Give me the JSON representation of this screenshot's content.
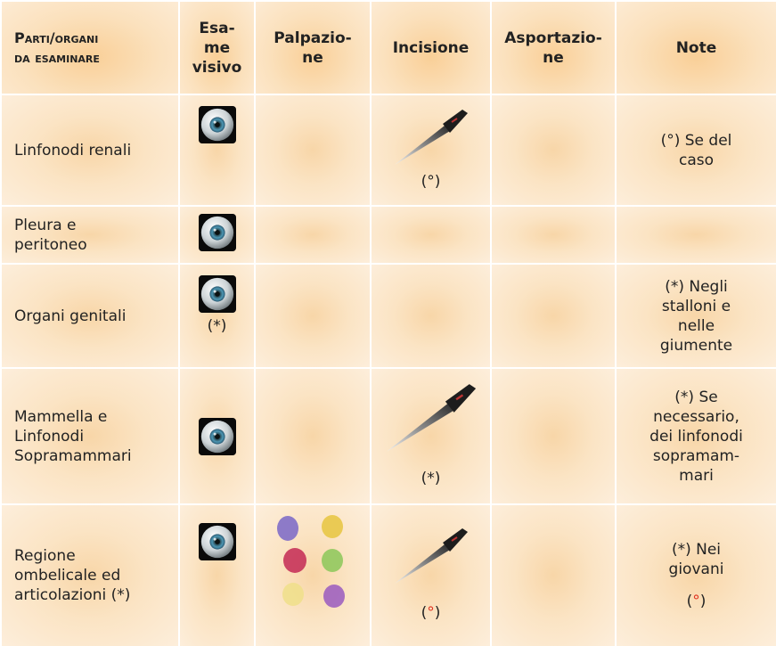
{
  "table": {
    "headers": [
      "Parti/organi\nda esaminare",
      "Esa-\nme\nvisivo",
      "Palpazio-\nne",
      "Incisione",
      "Asportazio-\nne",
      "Note"
    ],
    "rows": [
      {
        "part": "Linfonodi renali",
        "incision_marker": "(°)",
        "note": "(°) Se del\ncaso"
      },
      {
        "part": "Pleura e\nperitoneo"
      },
      {
        "part": "Organi genitali",
        "visual_marker": "(*)",
        "note": "(*) Negli\nstalloni e\nnelle\ngiumente"
      },
      {
        "part": "Mammella e\nLinfonodi\nSopramammari",
        "incision_marker": "(*)",
        "note": "(*) Se\nnecessario,\ndei linfonodi\nsopramam-\nmari"
      },
      {
        "part": "Regione\nombelicale ed\narticolazioni (*)",
        "incision_marker": [
          "(",
          "°",
          ")"
        ],
        "note": "(*) Nei\ngiovani",
        "note_marker": [
          "(",
          "°",
          ")"
        ]
      }
    ]
  }
}
